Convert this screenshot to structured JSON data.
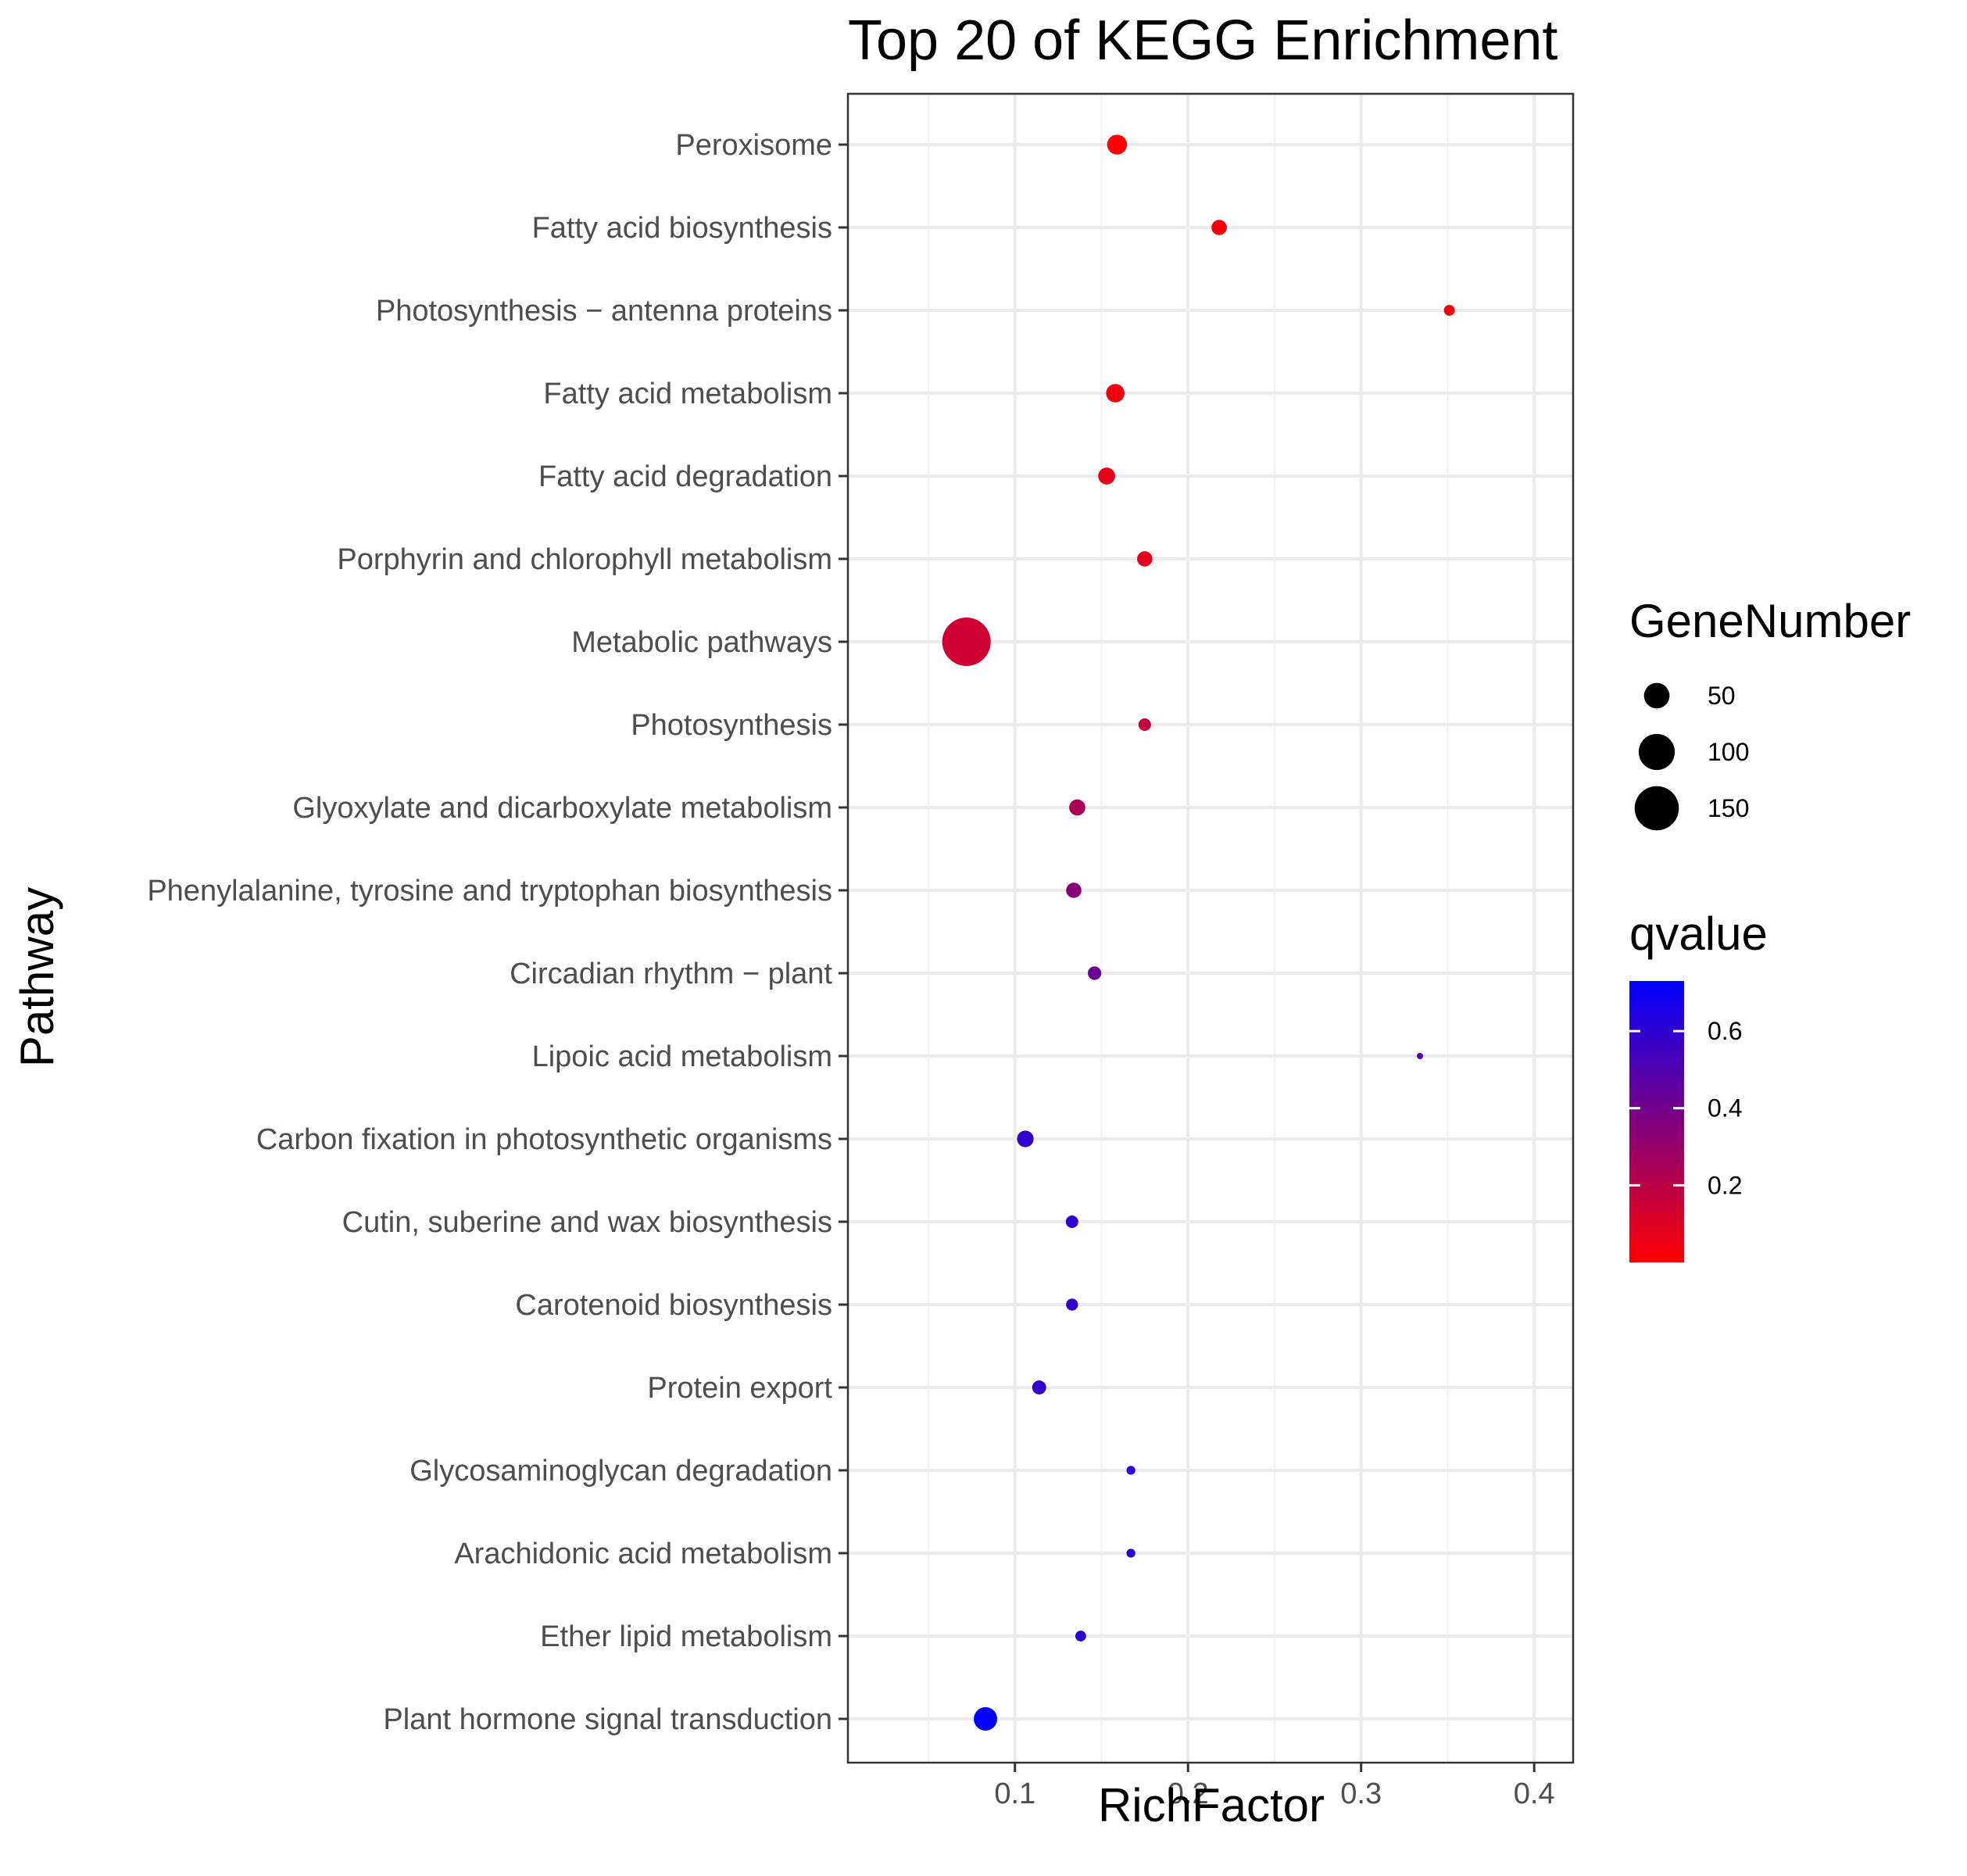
{
  "chart_data": {
    "type": "scatter",
    "title": "Top 20 of KEGG Enrichment",
    "xlabel": "RichFactor",
    "ylabel": "Pathway",
    "xlim": [
      0.0035,
      0.4225
    ],
    "x_ticks": [
      0.1,
      0.2,
      0.3,
      0.4
    ],
    "x_tick_labels": [
      "0.1",
      "0.2",
      "0.3",
      "0.4"
    ],
    "grid": true,
    "categories": [
      "Peroxisome",
      "Fatty acid biosynthesis",
      "Photosynthesis − antenna proteins",
      "Fatty acid metabolism",
      "Fatty acid degradation",
      "Porphyrin and chlorophyll metabolism",
      "Metabolic pathways",
      "Photosynthesis",
      "Glyoxylate and dicarboxylate metabolism",
      "Phenylalanine, tyrosine and tryptophan biosynthesis",
      "Circadian rhythm − plant",
      "Lipoic acid metabolism",
      "Carbon fixation in photosynthetic organisms",
      "Cutin, suberine and wax biosynthesis",
      "Carotenoid biosynthesis",
      "Protein export",
      "Glycosaminoglycan degradation",
      "Arachidonic acid metabolism",
      "Ether lipid metabolism",
      "Plant hormone signal transduction"
    ],
    "points": [
      {
        "pathway": "Peroxisome",
        "rich_factor": 0.159,
        "gene_number": 30,
        "qvalue": 0.01
      },
      {
        "pathway": "Fatty acid biosynthesis",
        "rich_factor": 0.218,
        "gene_number": 18,
        "qvalue": 0.02
      },
      {
        "pathway": "Photosynthesis − antenna proteins",
        "rich_factor": 0.351,
        "gene_number": 9,
        "qvalue": 0.03
      },
      {
        "pathway": "Fatty acid metabolism",
        "rich_factor": 0.158,
        "gene_number": 26,
        "qvalue": 0.04
      },
      {
        "pathway": "Fatty acid degradation",
        "rich_factor": 0.153,
        "gene_number": 22,
        "qvalue": 0.07
      },
      {
        "pathway": "Porphyrin and chlorophyll metabolism",
        "rich_factor": 0.175,
        "gene_number": 18,
        "qvalue": 0.08
      },
      {
        "pathway": "Metabolic pathways",
        "rich_factor": 0.072,
        "gene_number": 180,
        "qvalue": 0.14
      },
      {
        "pathway": "Photosynthesis",
        "rich_factor": 0.175,
        "gene_number": 12,
        "qvalue": 0.17
      },
      {
        "pathway": "Glyoxylate and dicarboxylate metabolism",
        "rich_factor": 0.136,
        "gene_number": 20,
        "qvalue": 0.25
      },
      {
        "pathway": "Phenylalanine, tyrosine and tryptophan biosynthesis",
        "rich_factor": 0.134,
        "gene_number": 18,
        "qvalue": 0.34
      },
      {
        "pathway": "Circadian rhythm − plant",
        "rich_factor": 0.146,
        "gene_number": 14,
        "qvalue": 0.42
      },
      {
        "pathway": "Lipoic acid metabolism",
        "rich_factor": 0.334,
        "gene_number": 3,
        "qvalue": 0.47
      },
      {
        "pathway": "Carbon fixation in photosynthetic organisms",
        "rich_factor": 0.106,
        "gene_number": 21,
        "qvalue": 0.58
      },
      {
        "pathway": "Cutin, suberine and wax biosynthesis",
        "rich_factor": 0.133,
        "gene_number": 12,
        "qvalue": 0.59
      },
      {
        "pathway": "Carotenoid biosynthesis",
        "rich_factor": 0.133,
        "gene_number": 11,
        "qvalue": 0.58
      },
      {
        "pathway": "Protein export",
        "rich_factor": 0.114,
        "gene_number": 15,
        "qvalue": 0.59
      },
      {
        "pathway": "Glycosaminoglycan degradation",
        "rich_factor": 0.167,
        "gene_number": 6,
        "qvalue": 0.6
      },
      {
        "pathway": "Arachidonic acid metabolism",
        "rich_factor": 0.167,
        "gene_number": 6,
        "qvalue": 0.6
      },
      {
        "pathway": "Ether lipid metabolism",
        "rich_factor": 0.138,
        "gene_number": 9,
        "qvalue": 0.6
      },
      {
        "pathway": "Plant hormone signal transduction",
        "rich_factor": 0.083,
        "gene_number": 42,
        "qvalue": 0.72
      }
    ],
    "legend": {
      "placement": "right",
      "size": {
        "title": "GeneNumber",
        "breaks": [
          50,
          100,
          150
        ],
        "labels": [
          "50",
          "100",
          "150"
        ]
      },
      "color": {
        "title": "qvalue",
        "low_color": "#ff0000",
        "high_color": "#0000ff",
        "range": [
          0.0,
          0.73
        ],
        "breaks": [
          0.2,
          0.4,
          0.6
        ],
        "labels": [
          "0.2",
          "0.4",
          "0.6"
        ]
      }
    }
  }
}
